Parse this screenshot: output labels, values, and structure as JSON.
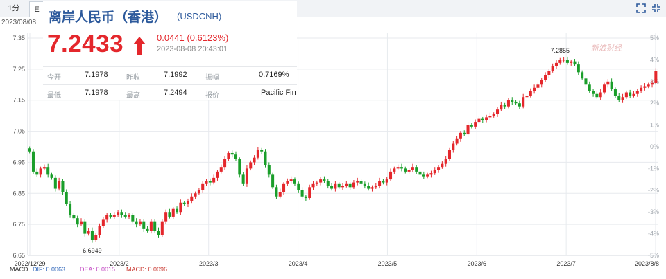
{
  "toolbar": {
    "tabs": [
      {
        "label": "1分"
      },
      {
        "label": "E"
      }
    ]
  },
  "date_label": "2023/08/08",
  "quote": {
    "name": "离岸人民币（香港）",
    "code": "(USDCNH)",
    "price": "7.2433",
    "change": "0.0441 (0.6123%)",
    "time": "2023-08-08 20:43:01",
    "stats": [
      {
        "label": "今开",
        "value": "7.1978"
      },
      {
        "label": "昨收",
        "value": "7.1992"
      },
      {
        "label": "振幅",
        "value": "0.7169%"
      },
      {
        "label": "最低",
        "value": "7.1978"
      },
      {
        "label": "最高",
        "value": "7.2494"
      },
      {
        "label": "报价",
        "value": "Pacific Fin"
      }
    ]
  },
  "macd": {
    "label": "MACD",
    "dif": "DIF: 0.0063",
    "dea": "DEA: 0.0015",
    "macd": "MACD: 0.0096"
  },
  "watermark": "新浪财经",
  "colors": {
    "up": "#e4272c",
    "down": "#1a9e2a",
    "name": "#2d5a9c"
  },
  "chart_data": {
    "type": "candlestick",
    "x_ticks": [
      "2022/12/29",
      "2023/2",
      "2023/3",
      "2023/4",
      "2023/5",
      "2023/6",
      "2023/7",
      "2023/8/8"
    ],
    "y_ticks": [
      "7.35",
      "7.25",
      "7.15",
      "7.05",
      "6.95",
      "6.85",
      "6.75",
      "6.65"
    ],
    "y_right_ticks": [
      "5%",
      "4%",
      "3%",
      "2%",
      "1%",
      "0%",
      "-1%",
      "-2%",
      "-3%",
      "-4%",
      "-5%"
    ],
    "ylim": [
      6.65,
      7.35
    ],
    "annotations": [
      {
        "text": "7.2855",
        "value": 7.2855
      },
      {
        "text": "6.6949",
        "value": 6.6949
      }
    ],
    "grid": true,
    "closes": [
      6.985,
      6.92,
      6.91,
      6.93,
      6.935,
      6.91,
      6.9,
      6.865,
      6.89,
      6.855,
      6.815,
      6.78,
      6.77,
      6.75,
      6.76,
      6.72,
      6.73,
      6.7,
      6.715,
      6.745,
      6.765,
      6.78,
      6.775,
      6.78,
      6.79,
      6.78,
      6.775,
      6.78,
      6.76,
      6.75,
      6.76,
      6.735,
      6.73,
      6.76,
      6.73,
      6.715,
      6.76,
      6.79,
      6.775,
      6.8,
      6.79,
      6.82,
      6.815,
      6.825,
      6.84,
      6.85,
      6.86,
      6.88,
      6.89,
      6.885,
      6.9,
      6.92,
      6.935,
      6.96,
      6.98,
      6.975,
      6.96,
      6.91,
      6.88,
      6.93,
      6.95,
      6.965,
      6.99,
      6.985,
      6.94,
      6.91,
      6.87,
      6.84,
      6.855,
      6.88,
      6.89,
      6.895,
      6.88,
      6.86,
      6.84,
      6.835,
      6.87,
      6.88,
      6.885,
      6.895,
      6.89,
      6.875,
      6.865,
      6.88,
      6.87,
      6.875,
      6.88,
      6.87,
      6.885,
      6.89,
      6.88,
      6.875,
      6.865,
      6.87,
      6.875,
      6.89,
      6.885,
      6.895,
      6.92,
      6.93,
      6.935,
      6.93,
      6.92,
      6.925,
      6.935,
      6.92,
      6.91,
      6.905,
      6.91,
      6.915,
      6.925,
      6.935,
      6.945,
      6.96,
      6.99,
      7.01,
      7.025,
      7.045,
      7.04,
      7.07,
      7.065,
      7.08,
      7.09,
      7.085,
      7.095,
      7.1,
      7.105,
      7.12,
      7.135,
      7.13,
      7.15,
      7.145,
      7.14,
      7.13,
      7.16,
      7.165,
      7.18,
      7.19,
      7.2,
      7.215,
      7.23,
      7.245,
      7.26,
      7.27,
      7.28,
      7.28,
      7.27,
      7.275,
      7.265,
      7.24,
      7.22,
      7.2,
      7.18,
      7.17,
      7.16,
      7.175,
      7.2,
      7.21,
      7.185,
      7.165,
      7.15,
      7.16,
      7.175,
      7.165,
      7.17,
      7.18,
      7.19,
      7.195,
      7.2,
      7.205,
      7.2433
    ]
  }
}
